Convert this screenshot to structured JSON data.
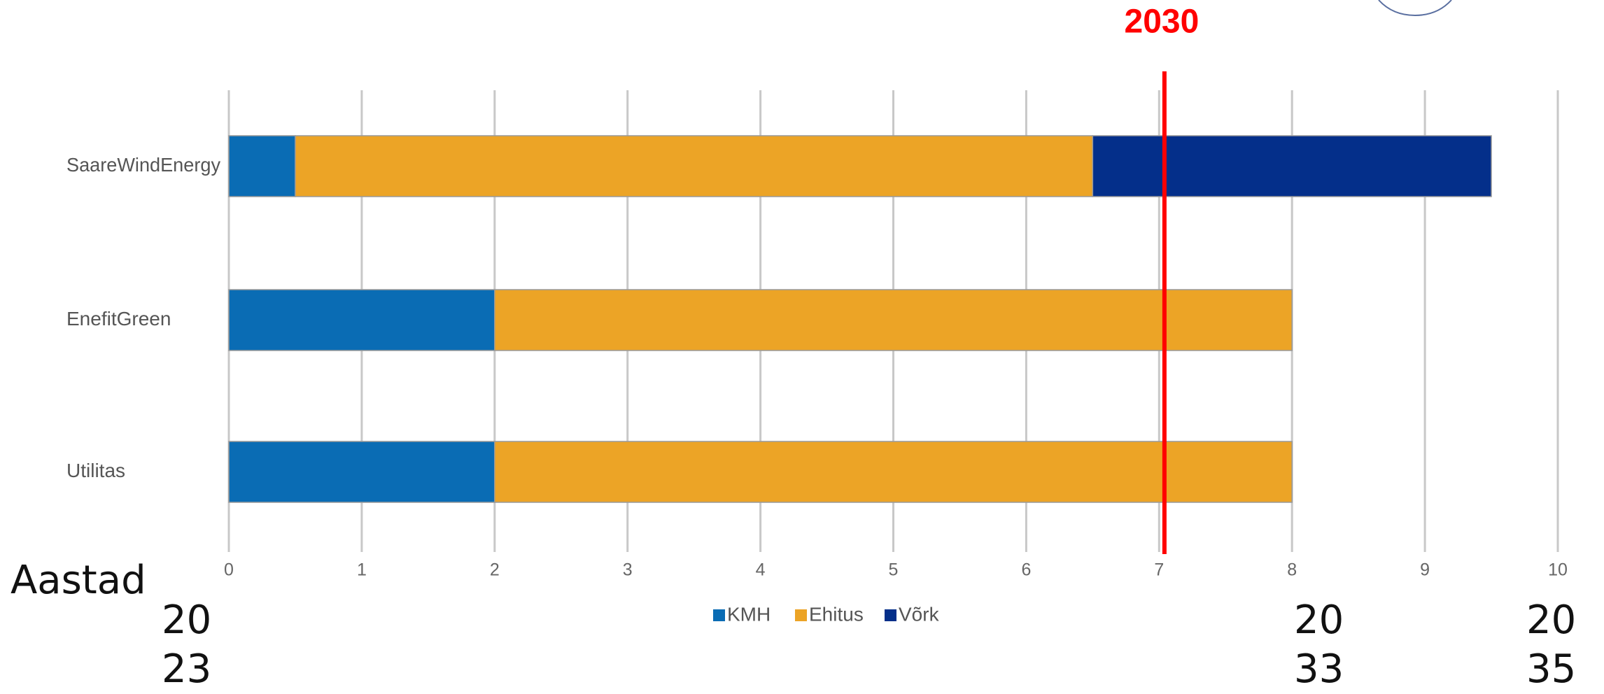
{
  "chart_data": {
    "type": "bar",
    "orientation": "horizontal",
    "stacked": true,
    "categories": [
      "SaareWindEnergy",
      "EnefitGreen",
      "Utilitas"
    ],
    "series": [
      {
        "name": "KMH",
        "color": "#0a6cb4",
        "values": [
          0.5,
          2,
          2
        ]
      },
      {
        "name": "Ehitus",
        "color": "#eca426",
        "values": [
          6,
          6,
          6
        ]
      },
      {
        "name": "Võrk",
        "color": "#042f8a",
        "values": [
          3,
          0,
          0
        ]
      }
    ],
    "xlim": [
      0,
      10
    ],
    "xticks": [
      0,
      1,
      2,
      3,
      4,
      5,
      6,
      7,
      8,
      9,
      10
    ],
    "grid": true,
    "reference_line": {
      "value": 7.04,
      "label": "2030",
      "color": "#ff0000"
    },
    "axis_note": "Aastad",
    "year_labels": [
      "2023",
      "2033",
      "2035"
    ]
  }
}
